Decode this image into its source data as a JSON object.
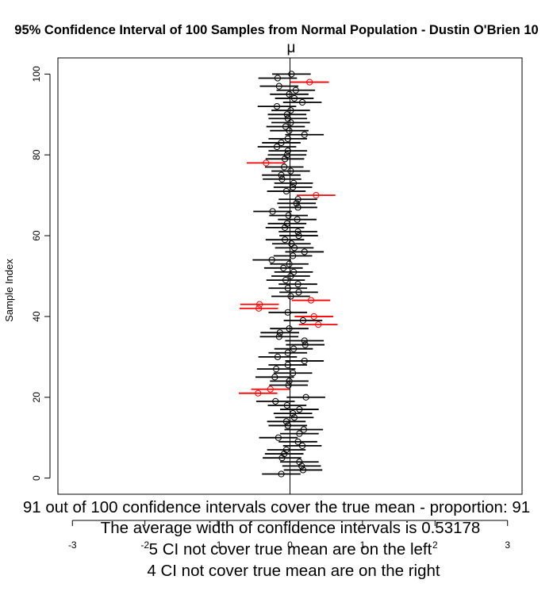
{
  "chart_data": {
    "type": "interval",
    "title": "95% Confidence Interval of 100  Samples from Normal Population -  Dustin O'Brien 10",
    "true_mean_label": "μ",
    "true_mean": 0,
    "xlabel": "",
    "ylabel": "Sample Index",
    "xlim": [
      -3.2,
      3.2
    ],
    "ylim": [
      -4,
      104
    ],
    "x_ticks": [
      -3,
      -2,
      -1,
      0,
      1,
      2,
      3
    ],
    "y_ticks": [
      0,
      20,
      40,
      60,
      80,
      100
    ],
    "half_width": 0.26589,
    "colors": {
      "covers": "#000000",
      "misses": "#ff0000",
      "frame": "#000000",
      "mean_line": "#000000"
    },
    "sample_means": [
      -0.12,
      0.18,
      0.16,
      0.13,
      -0.11,
      -0.08,
      -0.05,
      0.17,
      0.11,
      -0.16,
      0.13,
      0.19,
      -0.03,
      -0.05,
      0.06,
      0.04,
      0.13,
      -0.04,
      -0.2,
      0.22,
      -0.44,
      -0.27,
      -0.02,
      -0.01,
      -0.21,
      0.04,
      -0.19,
      -0.03,
      0.2,
      -0.17,
      -0.03,
      0.05,
      0.21,
      0.2,
      -0.15,
      -0.14,
      -0.01,
      0.39,
      0.18,
      0.33,
      -0.03,
      -0.43,
      -0.42,
      0.29,
      0.01,
      0.12,
      -0.03,
      0.11,
      -0.06,
      0.01,
      0.05,
      -0.09,
      -0.01,
      -0.25,
      0.04,
      0.2,
      0.06,
      0.02,
      -0.07,
      0.12,
      0.11,
      -0.07,
      -0.04,
      0.1,
      -0.02,
      -0.24,
      0.11,
      0.09,
      0.11,
      0.36,
      -0.05,
      0.04,
      0.05,
      -0.11,
      -0.12,
      0.01,
      -0.08,
      -0.33,
      -0.07,
      -0.04,
      -0.03,
      -0.18,
      -0.12,
      -0.03,
      0.2,
      -0.01,
      -0.06,
      0.01,
      -0.03,
      -0.04,
      0.01,
      -0.18,
      0.17,
      0.06,
      -0.01,
      0.08,
      -0.15,
      0.27,
      -0.17,
      0.02
    ],
    "notes": [
      "91 out of 100 confidence intervals cover the true mean - proportion: 91",
      "The average width of confidence intervals is 0.53178",
      "5 CI not cover true mean are on the left",
      "4 CI not cover true mean are on the right"
    ]
  }
}
